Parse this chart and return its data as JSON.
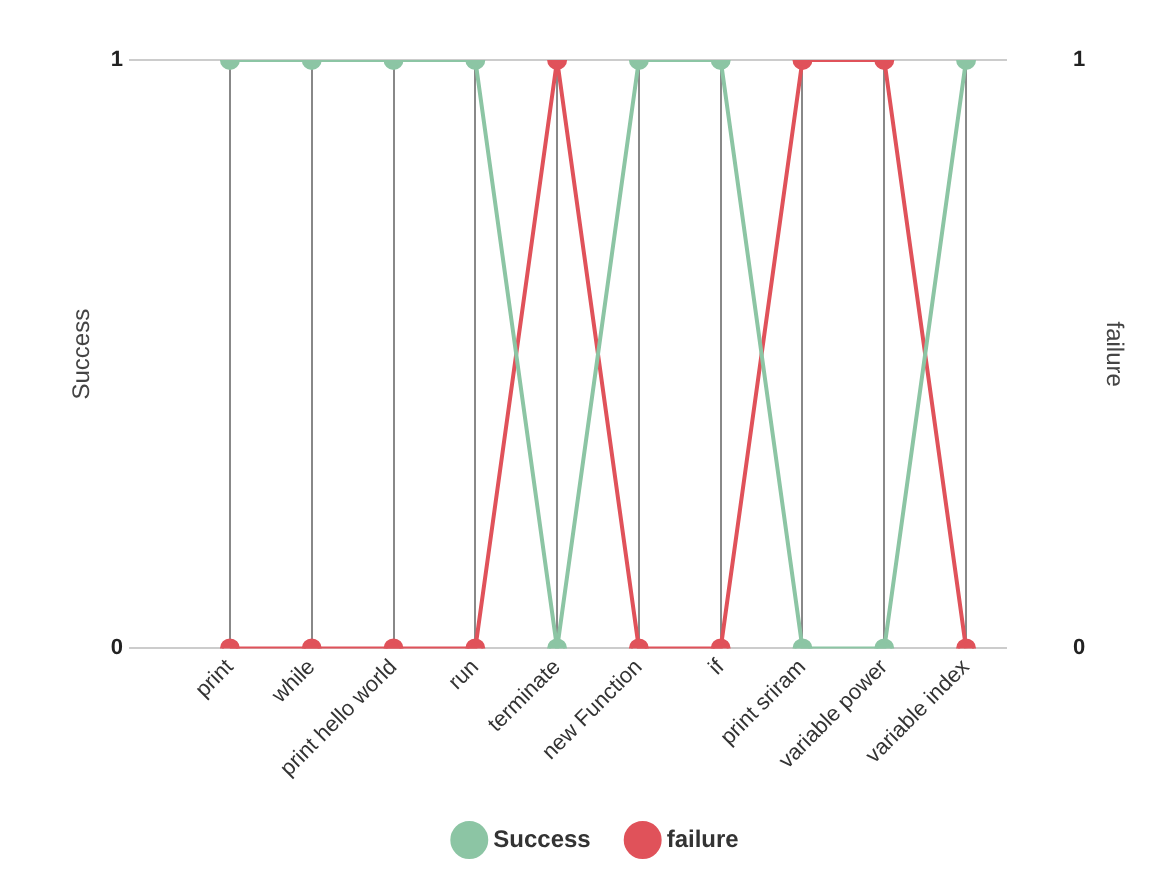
{
  "chart_data": {
    "type": "line",
    "categories": [
      "print",
      "while",
      "print hello world",
      "run",
      "terminate",
      "new Function",
      "if",
      "print sriram",
      "variable power",
      "variable index"
    ],
    "series": [
      {
        "name": "Success",
        "color": "#8cc5a4",
        "values": [
          1,
          1,
          1,
          1,
          0,
          1,
          1,
          0,
          0,
          1
        ]
      },
      {
        "name": "failure",
        "color": "#e0525a",
        "axis": "y2",
        "values": [
          0,
          0,
          0,
          0,
          1,
          0,
          0,
          1,
          1,
          0
        ]
      }
    ],
    "ylabel": "Success",
    "y2label": "failure",
    "ylim": [
      0,
      1
    ],
    "yticks": [
      0,
      1
    ],
    "y2lim": [
      0,
      1
    ],
    "y2ticks": [
      0,
      1
    ],
    "grid": true,
    "legend": "bottom",
    "marker": "circle",
    "line_style": "solid"
  }
}
